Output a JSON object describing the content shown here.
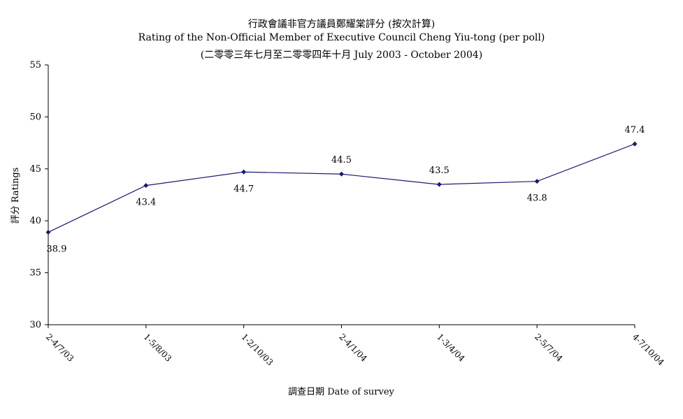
{
  "chart_data": {
    "type": "line",
    "title_lines": [
      "行政會議非官方議員鄭耀棠評分 (按次計算)",
      "Rating of the Non-Official Member of Executive Council Cheng Yiu-tong  (per poll)",
      "(二零零三年七月至二零零四年十月 July 2003 - October 2004)"
    ],
    "xlabel": "調查日期 Date of survey",
    "ylabel": "評分 Ratings",
    "categories": [
      "2-4/7/03",
      "1-5/8/03",
      "1-2/10/03",
      "2-4/1/04",
      "1-3/4/04",
      "2-5/7/04",
      "4-7/10/04"
    ],
    "series": [
      {
        "values": [
          38.9,
          43.4,
          44.7,
          44.5,
          43.5,
          43.8,
          47.4
        ],
        "color": "#1a1a6e"
      }
    ],
    "data_labels": [
      "38.9",
      "43.4",
      "44.7",
      "44.5",
      "43.5",
      "43.8",
      "47.4"
    ],
    "ylim": [
      30,
      55
    ],
    "yticks": [
      "30",
      "35",
      "40",
      "45",
      "50",
      "55"
    ],
    "grid": false,
    "legend": "none"
  }
}
